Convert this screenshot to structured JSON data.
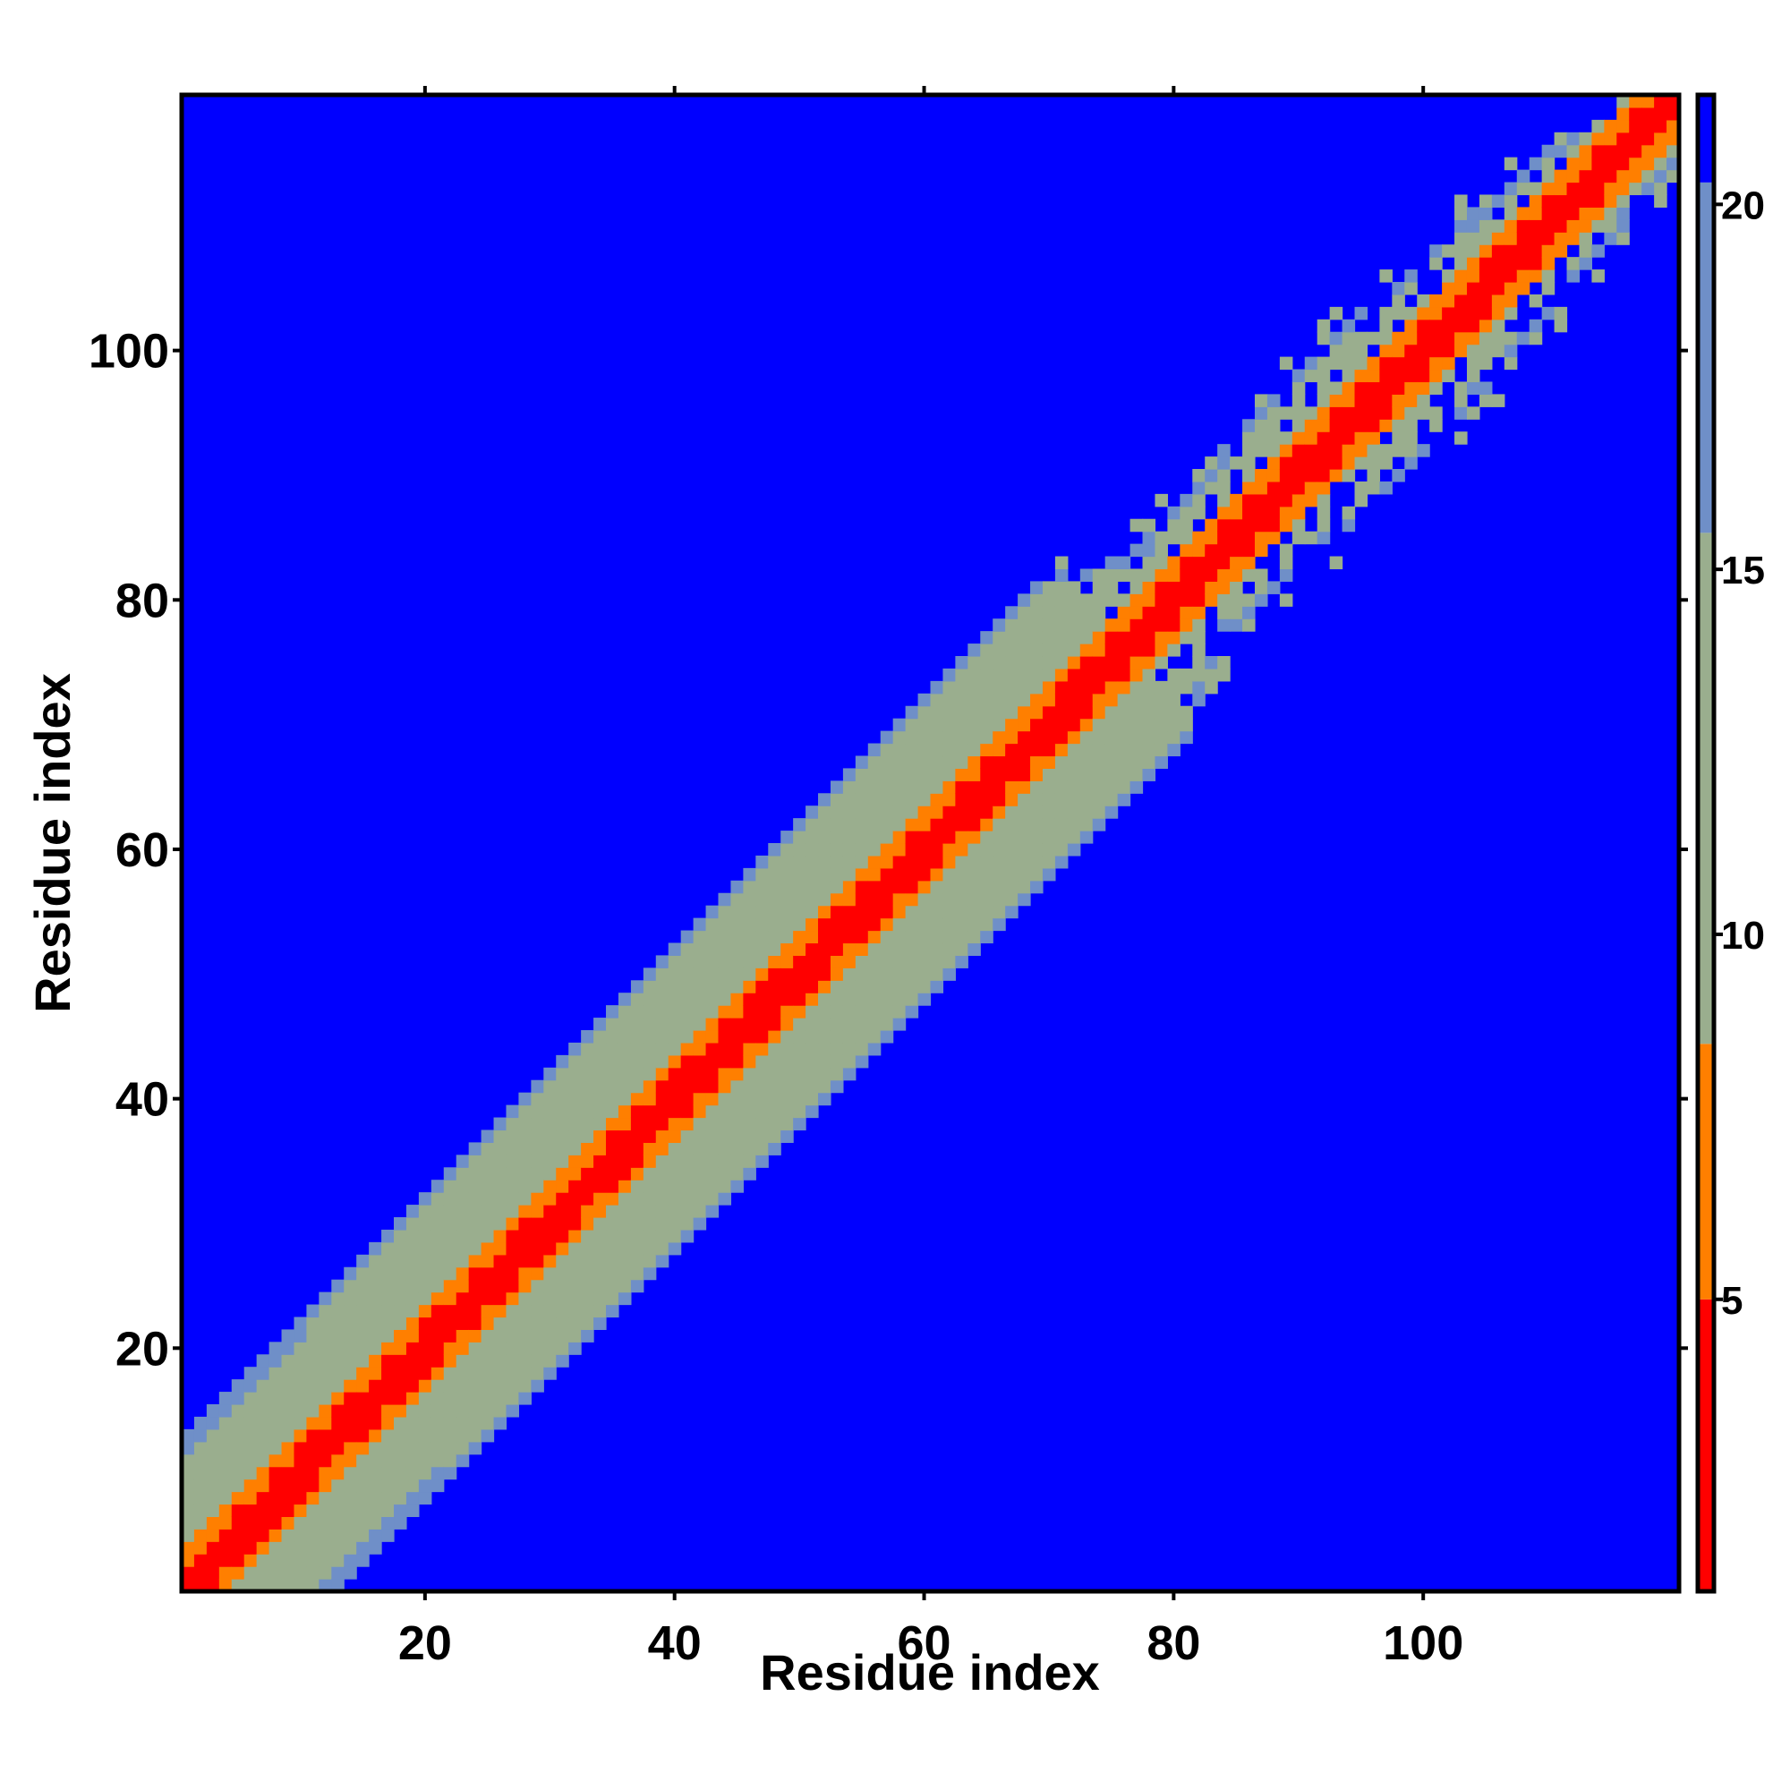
{
  "chart_data": {
    "type": "heatmap",
    "title": "",
    "xlabel": "Residue index",
    "ylabel": "Residue index",
    "n_residues": 120,
    "x_range": [
      0.5,
      120.5
    ],
    "y_range": [
      0.5,
      120.5
    ],
    "x_ticks": [
      20,
      40,
      60,
      80,
      100
    ],
    "y_ticks": [
      20,
      40,
      60,
      80,
      100
    ],
    "colorbar": {
      "ticks": [
        5,
        10,
        15,
        20
      ],
      "range": [
        1,
        21.5
      ],
      "colors": {
        "near": "#ff0000",
        "close": "#ff7f00",
        "mid": "#9aae8e",
        "far_edge": "#6f8fc8",
        "far": "#0000ff"
      }
    },
    "band_half_width_profile": [
      {
        "residue": 1,
        "half_width": 12
      },
      {
        "residue": 75,
        "half_width": 13
      },
      {
        "residue": 80,
        "half_width": 7
      },
      {
        "residue": 95,
        "half_width": 9
      },
      {
        "residue": 120,
        "half_width": 5
      }
    ]
  }
}
